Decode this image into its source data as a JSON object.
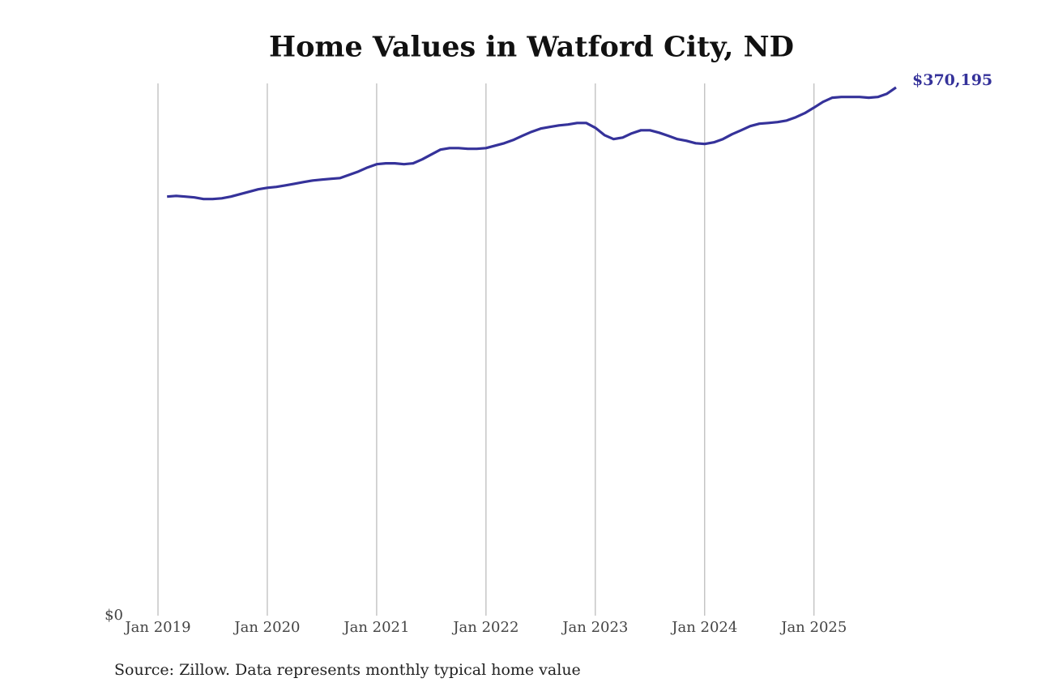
{
  "chart_data": {
    "type": "line",
    "title": "Home Values in Watford City, ND",
    "source": "Source: Zillow. Data represents monthly typical home value",
    "x": [
      "2019-02",
      "2019-03",
      "2019-04",
      "2019-05",
      "2019-06",
      "2019-07",
      "2019-08",
      "2019-09",
      "2019-10",
      "2019-11",
      "2019-12",
      "2020-01",
      "2020-02",
      "2020-03",
      "2020-04",
      "2020-05",
      "2020-06",
      "2020-07",
      "2020-08",
      "2020-09",
      "2020-10",
      "2020-11",
      "2020-12",
      "2021-01",
      "2021-02",
      "2021-03",
      "2021-04",
      "2021-05",
      "2021-06",
      "2021-07",
      "2021-08",
      "2021-09",
      "2021-10",
      "2021-11",
      "2021-12",
      "2022-01",
      "2022-02",
      "2022-03",
      "2022-04",
      "2022-05",
      "2022-06",
      "2022-07",
      "2022-08",
      "2022-09",
      "2022-10",
      "2022-11",
      "2022-12",
      "2023-01",
      "2023-02",
      "2023-03",
      "2023-04",
      "2023-05",
      "2023-06",
      "2023-07",
      "2023-08",
      "2023-09",
      "2023-10",
      "2023-11",
      "2023-12",
      "2024-01",
      "2024-02",
      "2024-03",
      "2024-04",
      "2024-05",
      "2024-06",
      "2024-07",
      "2024-08",
      "2024-09",
      "2024-10",
      "2024-11",
      "2024-12",
      "2025-01",
      "2025-02",
      "2025-03",
      "2025-04",
      "2025-05",
      "2025-06",
      "2025-07",
      "2025-08",
      "2025-09",
      "2025-10"
    ],
    "series": [
      {
        "color": "#35329a",
        "values": [
          293700,
          294200,
          293700,
          293100,
          292000,
          292000,
          292500,
          293700,
          295400,
          297100,
          298800,
          299900,
          300500,
          301600,
          302700,
          303900,
          305000,
          305600,
          306200,
          306700,
          309000,
          311300,
          314100,
          316400,
          317000,
          317000,
          316400,
          317000,
          319800,
          323200,
          326600,
          327700,
          327700,
          327200,
          327200,
          327700,
          329400,
          331100,
          333400,
          336300,
          339100,
          341400,
          342500,
          343600,
          344200,
          345300,
          345300,
          341900,
          336800,
          334000,
          335100,
          338000,
          340200,
          340200,
          338500,
          336300,
          334000,
          332800,
          331100,
          330600,
          331700,
          334000,
          337400,
          340200,
          343100,
          344800,
          345300,
          345900,
          347000,
          349300,
          352200,
          356100,
          360100,
          363000,
          363500,
          363500,
          363500,
          363000,
          363500,
          365800,
          370195
        ],
        "value_labels": [
          null,
          null,
          null,
          null,
          null,
          null,
          null,
          null,
          null,
          null,
          null,
          null,
          null,
          null,
          null,
          null,
          null,
          null,
          null,
          null,
          null,
          null,
          null,
          null,
          null,
          null,
          null,
          null,
          null,
          null,
          null,
          null,
          null,
          null,
          null,
          null,
          null,
          null,
          null,
          null,
          null,
          null,
          null,
          null,
          null,
          null,
          null,
          null,
          null,
          null,
          null,
          null,
          null,
          null,
          null,
          null,
          null,
          null,
          null,
          null,
          null,
          null,
          null,
          null,
          null,
          null,
          null,
          null,
          null,
          null,
          null,
          null,
          null,
          null,
          null,
          null,
          null,
          null,
          null,
          null,
          "$370,195"
        ]
      }
    ],
    "xlim": [
      "2019-01",
      "2025-10"
    ],
    "xticks": [
      {
        "value": "2019-01",
        "label": "Jan 2019"
      },
      {
        "value": "2020-01",
        "label": "Jan 2020"
      },
      {
        "value": "2021-01",
        "label": "Jan 2021"
      },
      {
        "value": "2022-01",
        "label": "Jan 2022"
      },
      {
        "value": "2023-01",
        "label": "Jan 2023"
      },
      {
        "value": "2024-01",
        "label": "Jan 2024"
      },
      {
        "value": "2025-01",
        "label": "Jan 2025"
      }
    ],
    "ylim": [
      0,
      373000
    ],
    "yticks": [
      {
        "value": 0,
        "label": "$0"
      }
    ],
    "grid": "x"
  }
}
